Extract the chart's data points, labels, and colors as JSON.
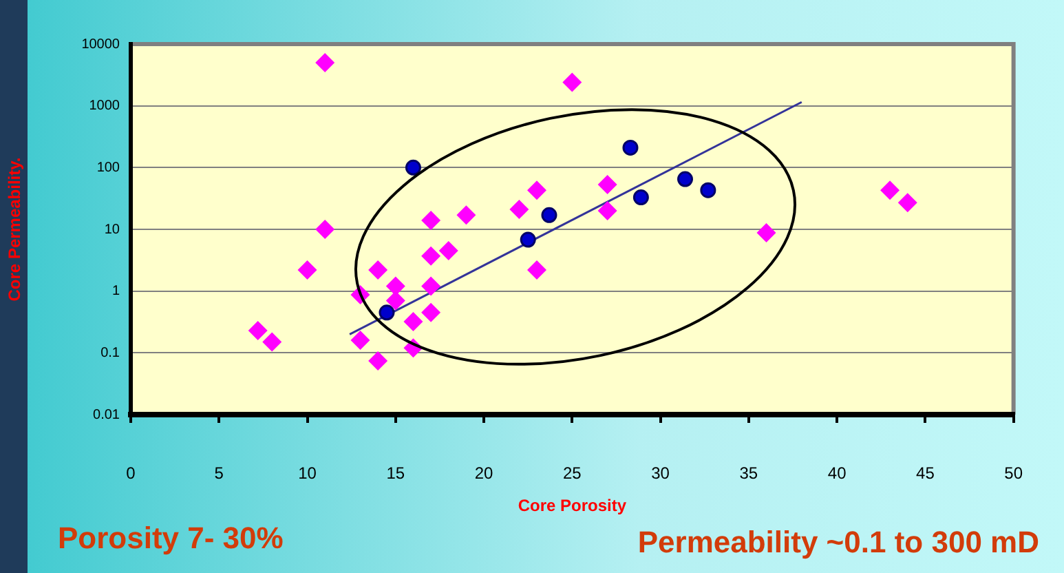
{
  "chart_data": {
    "type": "scatter",
    "xlabel": "Core Porosity",
    "ylabel": "Core Permeability.",
    "annotations": [
      "Porosity 7- 30%",
      "Permeability ~0.1 to 300 mD"
    ],
    "log": "y",
    "grid": "y",
    "legend": false,
    "xlim": [
      0,
      50
    ],
    "xticks": [
      0,
      5,
      10,
      15,
      20,
      25,
      30,
      35,
      40,
      45,
      50
    ],
    "ylim": [
      0.01,
      10000
    ],
    "yticks": [
      0.01,
      0.1,
      1,
      10,
      100,
      1000,
      10000
    ],
    "series": [
      {
        "marker": "diamond",
        "color": "#ff00ff",
        "x": [
          11,
          25,
          11,
          10,
          7.2,
          8,
          13,
          14,
          15,
          15,
          13,
          14,
          16,
          16,
          17,
          17,
          17,
          17,
          18,
          19,
          22,
          23,
          23,
          27,
          27,
          36,
          43,
          44
        ],
        "values": [
          5000,
          2400,
          10,
          2.2,
          0.23,
          0.15,
          0.87,
          2.2,
          1.2,
          0.7,
          0.16,
          0.074,
          0.32,
          0.12,
          14,
          3.7,
          1.2,
          0.45,
          4.5,
          17,
          21,
          43,
          2.2,
          53,
          20,
          8.8,
          43,
          27
        ]
      },
      {
        "marker": "circle",
        "color": "#0000cc",
        "x": [
          16,
          14.5,
          22.5,
          23.7,
          28.3,
          28.9,
          31.4,
          32.7
        ],
        "values": [
          100,
          0.45,
          6.8,
          17,
          210,
          33,
          65,
          43
        ]
      },
      {
        "type": "line",
        "marker": "none",
        "color": "#333399",
        "x": [
          12.4,
          38
        ],
        "values": [
          0.2,
          1150
        ]
      }
    ]
  }
}
